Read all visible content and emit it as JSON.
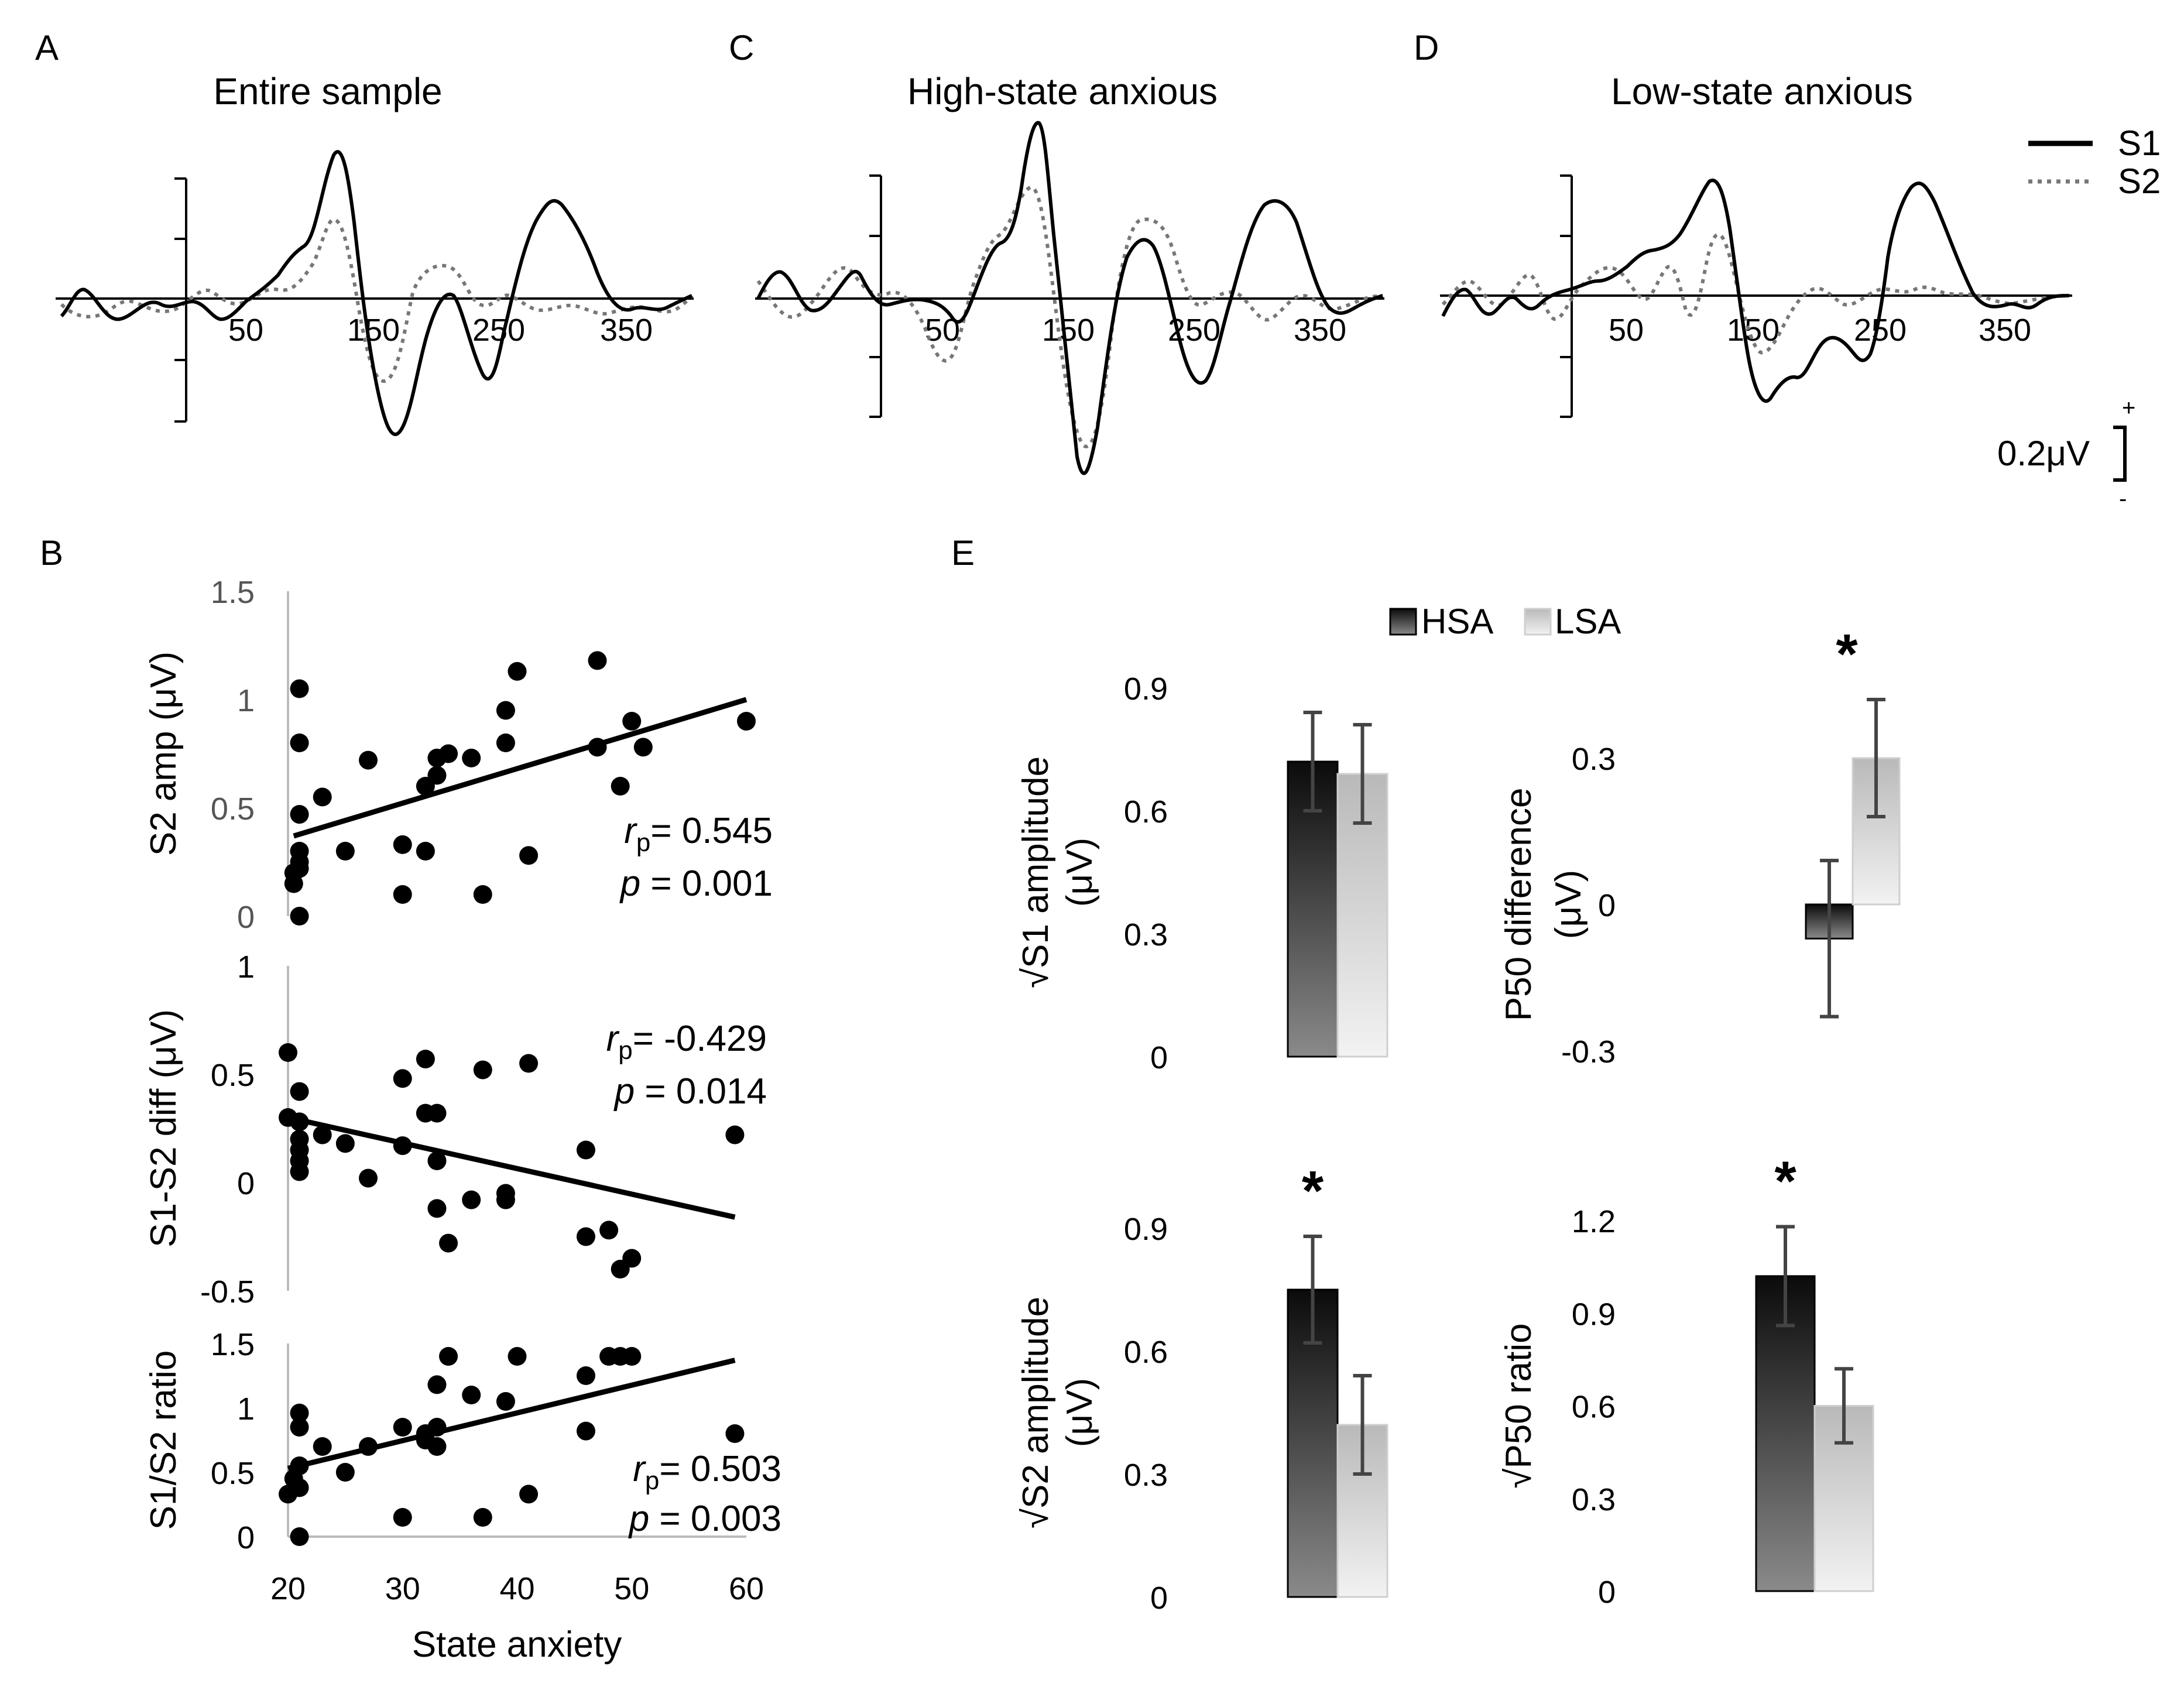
{
  "panels": {
    "A": {
      "letter": "A",
      "title": "Entire sample"
    },
    "C": {
      "letter": "C",
      "title": "High-state anxious"
    },
    "D": {
      "letter": "D",
      "title": "Low-state anxious"
    },
    "B": {
      "letter": "B"
    },
    "E": {
      "letter": "E"
    }
  },
  "erp_legend": {
    "s1": "S1",
    "s2": "S2",
    "scale_label": "0.2μV",
    "plus": "+",
    "minus": "-"
  },
  "erp_x_ticks": [
    "50",
    "150",
    "250",
    "350"
  ],
  "chart_data": [
    {
      "id": "B1",
      "type": "scatter",
      "ylabel": "S2 amp (μV)",
      "xlabel": "",
      "xlim": [
        20,
        60
      ],
      "ylim": [
        0,
        1.5
      ],
      "y_ticks": [
        "0",
        "0.5",
        "1",
        "1.5"
      ],
      "points": [
        [
          20.5,
          0.2
        ],
        [
          20.5,
          0.15
        ],
        [
          21,
          0.22
        ],
        [
          21,
          0.3
        ],
        [
          21,
          1.05
        ],
        [
          21,
          0.8
        ],
        [
          21,
          0.47
        ],
        [
          21,
          0.25
        ],
        [
          21,
          0
        ],
        [
          23,
          0.55
        ],
        [
          25,
          0.3
        ],
        [
          27,
          0.72
        ],
        [
          30,
          0.33
        ],
        [
          30,
          0.1
        ],
        [
          32,
          0.6
        ],
        [
          32,
          0.3
        ],
        [
          33,
          0.65
        ],
        [
          33,
          0.73
        ],
        [
          34,
          0.75
        ],
        [
          36,
          0.73
        ],
        [
          37,
          0.1
        ],
        [
          39,
          0.8
        ],
        [
          39,
          0.95
        ],
        [
          40,
          1.13
        ],
        [
          41,
          0.28
        ],
        [
          47,
          1.18
        ],
        [
          47,
          0.78
        ],
        [
          49,
          0.6
        ],
        [
          50,
          0.9
        ],
        [
          51,
          0.78
        ],
        [
          60,
          0.9
        ]
      ],
      "fit": [
        [
          20.5,
          0.37
        ],
        [
          60,
          1.0
        ]
      ],
      "stat_r": "= 0.545",
      "stat_p": "= 0.001"
    },
    {
      "id": "B2",
      "type": "scatter",
      "ylabel": "S1-S2 diff (μV)",
      "xlabel": "",
      "xlim": [
        20,
        60
      ],
      "ylim": [
        -0.5,
        1
      ],
      "y_ticks": [
        "-0.5",
        "0",
        "0.5",
        "1"
      ],
      "points": [
        [
          20,
          0.6
        ],
        [
          20,
          0.3
        ],
        [
          21,
          0.28
        ],
        [
          21,
          0.42
        ],
        [
          21,
          0.2
        ],
        [
          21,
          0.15
        ],
        [
          21,
          0.05
        ],
        [
          21,
          0.1
        ],
        [
          23,
          0.22
        ],
        [
          25,
          0.18
        ],
        [
          27,
          0.02
        ],
        [
          30,
          0.48
        ],
        [
          30,
          0.17
        ],
        [
          32,
          0.57
        ],
        [
          32,
          0.32
        ],
        [
          33,
          0.32
        ],
        [
          33,
          0.1
        ],
        [
          33,
          -0.12
        ],
        [
          34,
          -0.28
        ],
        [
          36,
          -0.08
        ],
        [
          37,
          0.52
        ],
        [
          39,
          -0.05
        ],
        [
          39,
          -0.08
        ],
        [
          41,
          0.55
        ],
        [
          46,
          -0.25
        ],
        [
          46,
          0.15
        ],
        [
          48,
          -0.22
        ],
        [
          49,
          -0.4
        ],
        [
          50,
          -0.35
        ],
        [
          59,
          0.22
        ]
      ],
      "fit": [
        [
          20,
          0.3
        ],
        [
          59,
          -0.16
        ]
      ],
      "stat_r": "= -0.429",
      "stat_p": "= 0.014"
    },
    {
      "id": "B3",
      "type": "scatter",
      "ylabel": "S1/S2 ratio",
      "xlabel": "State anxiety",
      "xlim": [
        20,
        60
      ],
      "ylim": [
        0,
        1.5
      ],
      "y_ticks": [
        "0",
        "0.5",
        "1",
        "1.5"
      ],
      "x_ticks": [
        "20",
        "30",
        "40",
        "50",
        "60"
      ],
      "points": [
        [
          20,
          0.33
        ],
        [
          20.5,
          0.45
        ],
        [
          21,
          0.38
        ],
        [
          21,
          0.55
        ],
        [
          21,
          0.85
        ],
        [
          21,
          0.96
        ],
        [
          21,
          0
        ],
        [
          23,
          0.7
        ],
        [
          25,
          0.5
        ],
        [
          27,
          0.7
        ],
        [
          30,
          0.85
        ],
        [
          30,
          0.15
        ],
        [
          32,
          0.75
        ],
        [
          32,
          0.8
        ],
        [
          33,
          1.18
        ],
        [
          33,
          0.85
        ],
        [
          33,
          0.7
        ],
        [
          34,
          1.4
        ],
        [
          36,
          1.1
        ],
        [
          37,
          0.15
        ],
        [
          39,
          1.05
        ],
        [
          40,
          1.4
        ],
        [
          41,
          0.33
        ],
        [
          46,
          1.25
        ],
        [
          46,
          0.82
        ],
        [
          48,
          1.4
        ],
        [
          49,
          1.4
        ],
        [
          50,
          1.4
        ],
        [
          59,
          0.8
        ]
      ],
      "fit": [
        [
          20,
          0.53
        ],
        [
          59,
          1.37
        ]
      ],
      "stat_r": "= 0.503",
      "stat_p": "= 0.003"
    },
    {
      "id": "E1",
      "type": "bar",
      "ylabel": "√S1 amplitude",
      "yunit": "(μV)",
      "categories": [
        "HSA",
        "LSA"
      ],
      "values": [
        0.72,
        0.69
      ],
      "errors": [
        0.12,
        0.12
      ],
      "ylim": [
        0,
        0.9
      ],
      "y_ticks": [
        "0",
        "0.3",
        "0.6",
        "0.9"
      ],
      "significant": false
    },
    {
      "id": "E2",
      "type": "bar",
      "ylabel": "P50 difference",
      "yunit": "(μV)",
      "categories": [
        "HSA",
        "LSA"
      ],
      "values": [
        -0.07,
        0.3
      ],
      "errors": [
        0.16,
        0.12
      ],
      "ylim": [
        -0.3,
        0.3
      ],
      "y_ticks": [
        "-0.3",
        "0",
        "0.3"
      ],
      "significant": true,
      "star": "*"
    },
    {
      "id": "E3",
      "type": "bar",
      "ylabel": "√S2 amplitude",
      "yunit": "(μV)",
      "categories": [
        "HSA",
        "LSA"
      ],
      "values": [
        0.75,
        0.42
      ],
      "errors": [
        0.13,
        0.12
      ],
      "ylim": [
        0,
        0.9
      ],
      "y_ticks": [
        "0",
        "0.3",
        "0.6",
        "0.9"
      ],
      "significant": true,
      "star": "*"
    },
    {
      "id": "E4",
      "type": "bar",
      "ylabel": "√P50 ratio",
      "yunit": "",
      "categories": [
        "HSA",
        "LSA"
      ],
      "values": [
        1.02,
        0.6
      ],
      "errors": [
        0.16,
        0.12
      ],
      "ylim": [
        0,
        1.2
      ],
      "y_ticks": [
        "0",
        "0.3",
        "0.6",
        "0.9",
        "1.2"
      ],
      "significant": true,
      "star": "*"
    }
  ],
  "bar_legend": {
    "hsa": "HSA",
    "lsa": "LSA"
  },
  "stat_labels": {
    "r": "r",
    "r_sub": "p",
    "p": "p"
  }
}
